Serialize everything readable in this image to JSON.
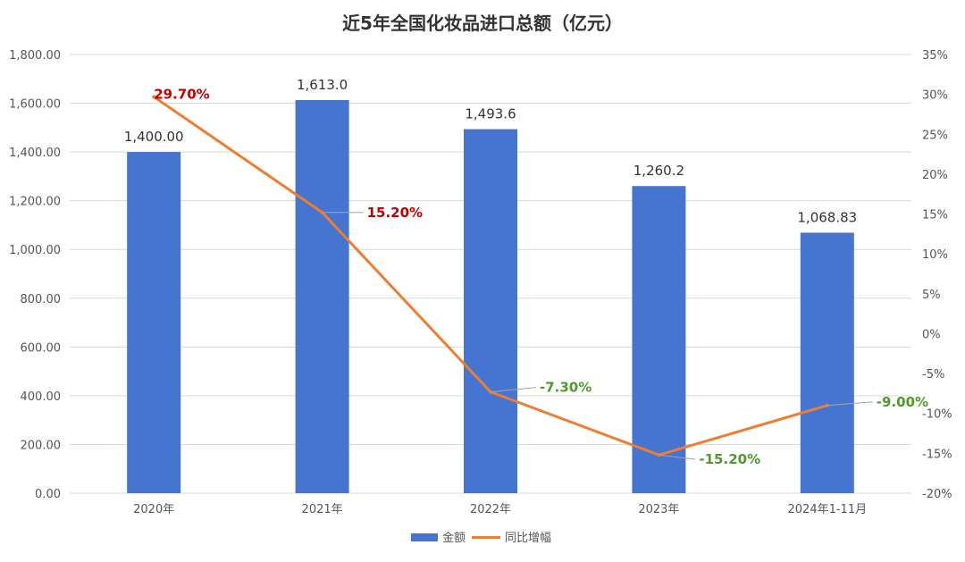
{
  "chart_data": {
    "type": "bar",
    "title": "近5年全国化妆品进口总额（亿元）",
    "categories": [
      "2020年",
      "2021年",
      "2022年",
      "2023年",
      "2024年1-11月"
    ],
    "series": [
      {
        "name": "金额",
        "type": "bar",
        "axis": "left",
        "color": "#4674d1",
        "values": [
          1400.0,
          1613.0,
          1493.6,
          1260.2,
          1068.83
        ],
        "labels": [
          "1,400.00",
          "1,613.0",
          "1,493.6",
          "1,260.2",
          "1,068.83"
        ]
      },
      {
        "name": "同比增幅",
        "type": "line",
        "axis": "right",
        "color": "#ed7d31",
        "values": [
          29.7,
          15.2,
          -7.3,
          -15.2,
          -9.0
        ],
        "labels": [
          "29.70%",
          "15.20%",
          "-7.30%",
          "-15.20%",
          "-9.00%"
        ],
        "label_colors": [
          "#c00000",
          "#c00000",
          "#4e9a2a",
          "#4e9a2a",
          "#4e9a2a"
        ]
      }
    ],
    "y_left": {
      "lim": [
        0,
        1800
      ],
      "ticks": [
        0,
        200,
        400,
        600,
        800,
        1000,
        1200,
        1400,
        1600,
        1800
      ],
      "tick_labels": [
        "0.00",
        "200.00",
        "400.00",
        "600.00",
        "800.00",
        "1,000.00",
        "1,200.00",
        "1,400.00",
        "1,600.00",
        "1,800.00"
      ]
    },
    "y_right": {
      "lim": [
        -20,
        35
      ],
      "ticks": [
        -20,
        -15,
        -10,
        -5,
        0,
        5,
        10,
        15,
        20,
        25,
        30,
        35
      ],
      "tick_labels": [
        "-20%",
        "-15%",
        "-10%",
        "-5%",
        "0%",
        "5%",
        "10%",
        "15%",
        "20%",
        "25%",
        "30%",
        "35%"
      ]
    },
    "grid": true,
    "legend_position": "bottom"
  }
}
